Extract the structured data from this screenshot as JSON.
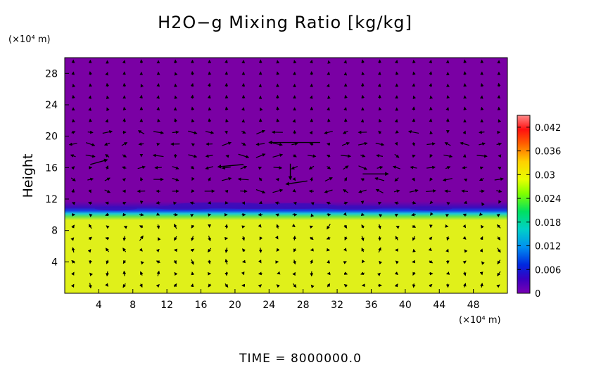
{
  "chart_data": {
    "type": "heatmap",
    "title": "H2O−g Mixing Ratio [kg/kg]",
    "ylabel": "Height",
    "x_unit_label": "(×10⁴ m)",
    "y_unit_label": "(×10⁴ m)",
    "footer": "TIME  =  8000000.0",
    "xlim": [
      0,
      52
    ],
    "ylim": [
      0,
      30
    ],
    "x_ticks": [
      4,
      8,
      12,
      16,
      20,
      24,
      28,
      32,
      36,
      40,
      44,
      48
    ],
    "y_ticks": [
      4,
      8,
      12,
      16,
      20,
      24,
      28
    ],
    "colorbar": {
      "range": [
        0,
        0.045
      ],
      "ticks": [
        "0",
        "0.006",
        "0.012",
        "0.018",
        "0.024",
        "0.03",
        "0.036",
        "0.042"
      ],
      "tick_values": [
        0,
        0.006,
        0.012,
        0.018,
        0.024,
        0.03,
        0.036,
        0.042
      ],
      "colors": [
        "#7a00b4",
        "#2a00c0",
        "#0030e8",
        "#00b8f0",
        "#00d8b0",
        "#00e040",
        "#a8ff00",
        "#e8ff00",
        "#ffd000",
        "#ff7000",
        "#ff1010",
        "#ff7878"
      ]
    },
    "field": {
      "upper_value": 0.0,
      "lower_value": 0.032,
      "transition_height": 10.2,
      "colors": {
        "upper": "#7a00a4",
        "transition_dark": "#3c0cbc",
        "transition_blue": "#1244e6",
        "transition_cyan": "#1cc8d8",
        "transition_green": "#60e250",
        "lower": "#e0f01a"
      }
    },
    "vector_field": {
      "description_hidden": true,
      "x_start": 1,
      "x_step": 2,
      "y_start": 1,
      "y_step": 1.5,
      "arrow_color": "#000000"
    }
  }
}
